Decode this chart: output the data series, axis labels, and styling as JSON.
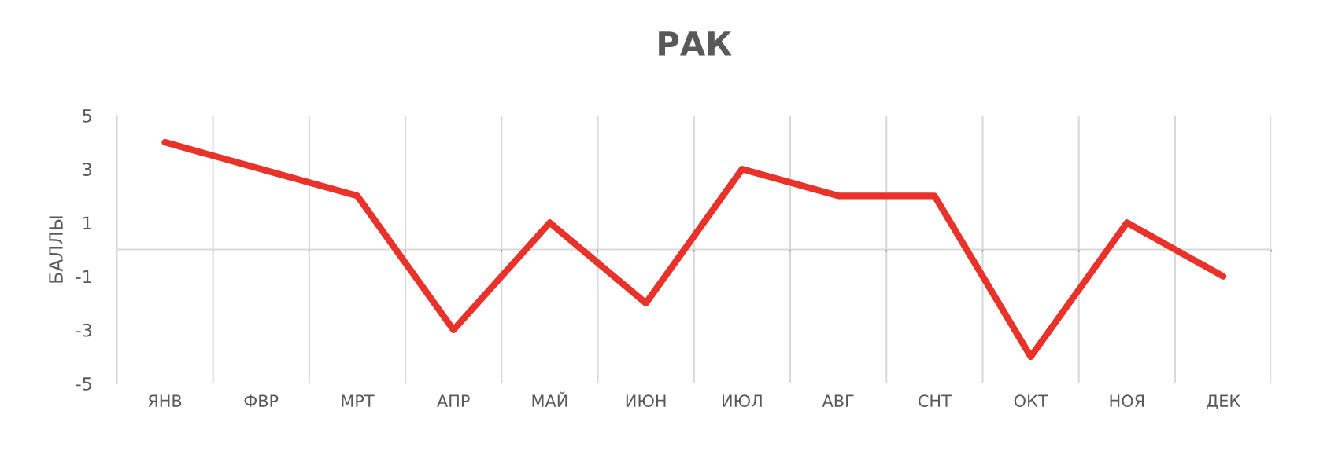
{
  "chart_data": {
    "type": "line",
    "title": "РАК",
    "ylabel": "БАЛЛЫ",
    "categories": [
      "ЯНВ",
      "ФВР",
      "МРТ",
      "АПР",
      "МАЙ",
      "ИЮН",
      "ИЮЛ",
      "АВГ",
      "СНТ",
      "ОКТ",
      "НОЯ",
      "ДЕК"
    ],
    "series": [
      {
        "color": "#e8322a",
        "values": [
          4,
          3,
          2,
          -3,
          1,
          -2,
          3,
          2,
          2,
          -4,
          1,
          -1
        ]
      }
    ],
    "ylim": [
      -5,
      5
    ],
    "yticks": [
      -5,
      -3,
      -1,
      1,
      3,
      5
    ],
    "grid": "x",
    "legend": false,
    "marker": "none",
    "line_style": "solid"
  }
}
